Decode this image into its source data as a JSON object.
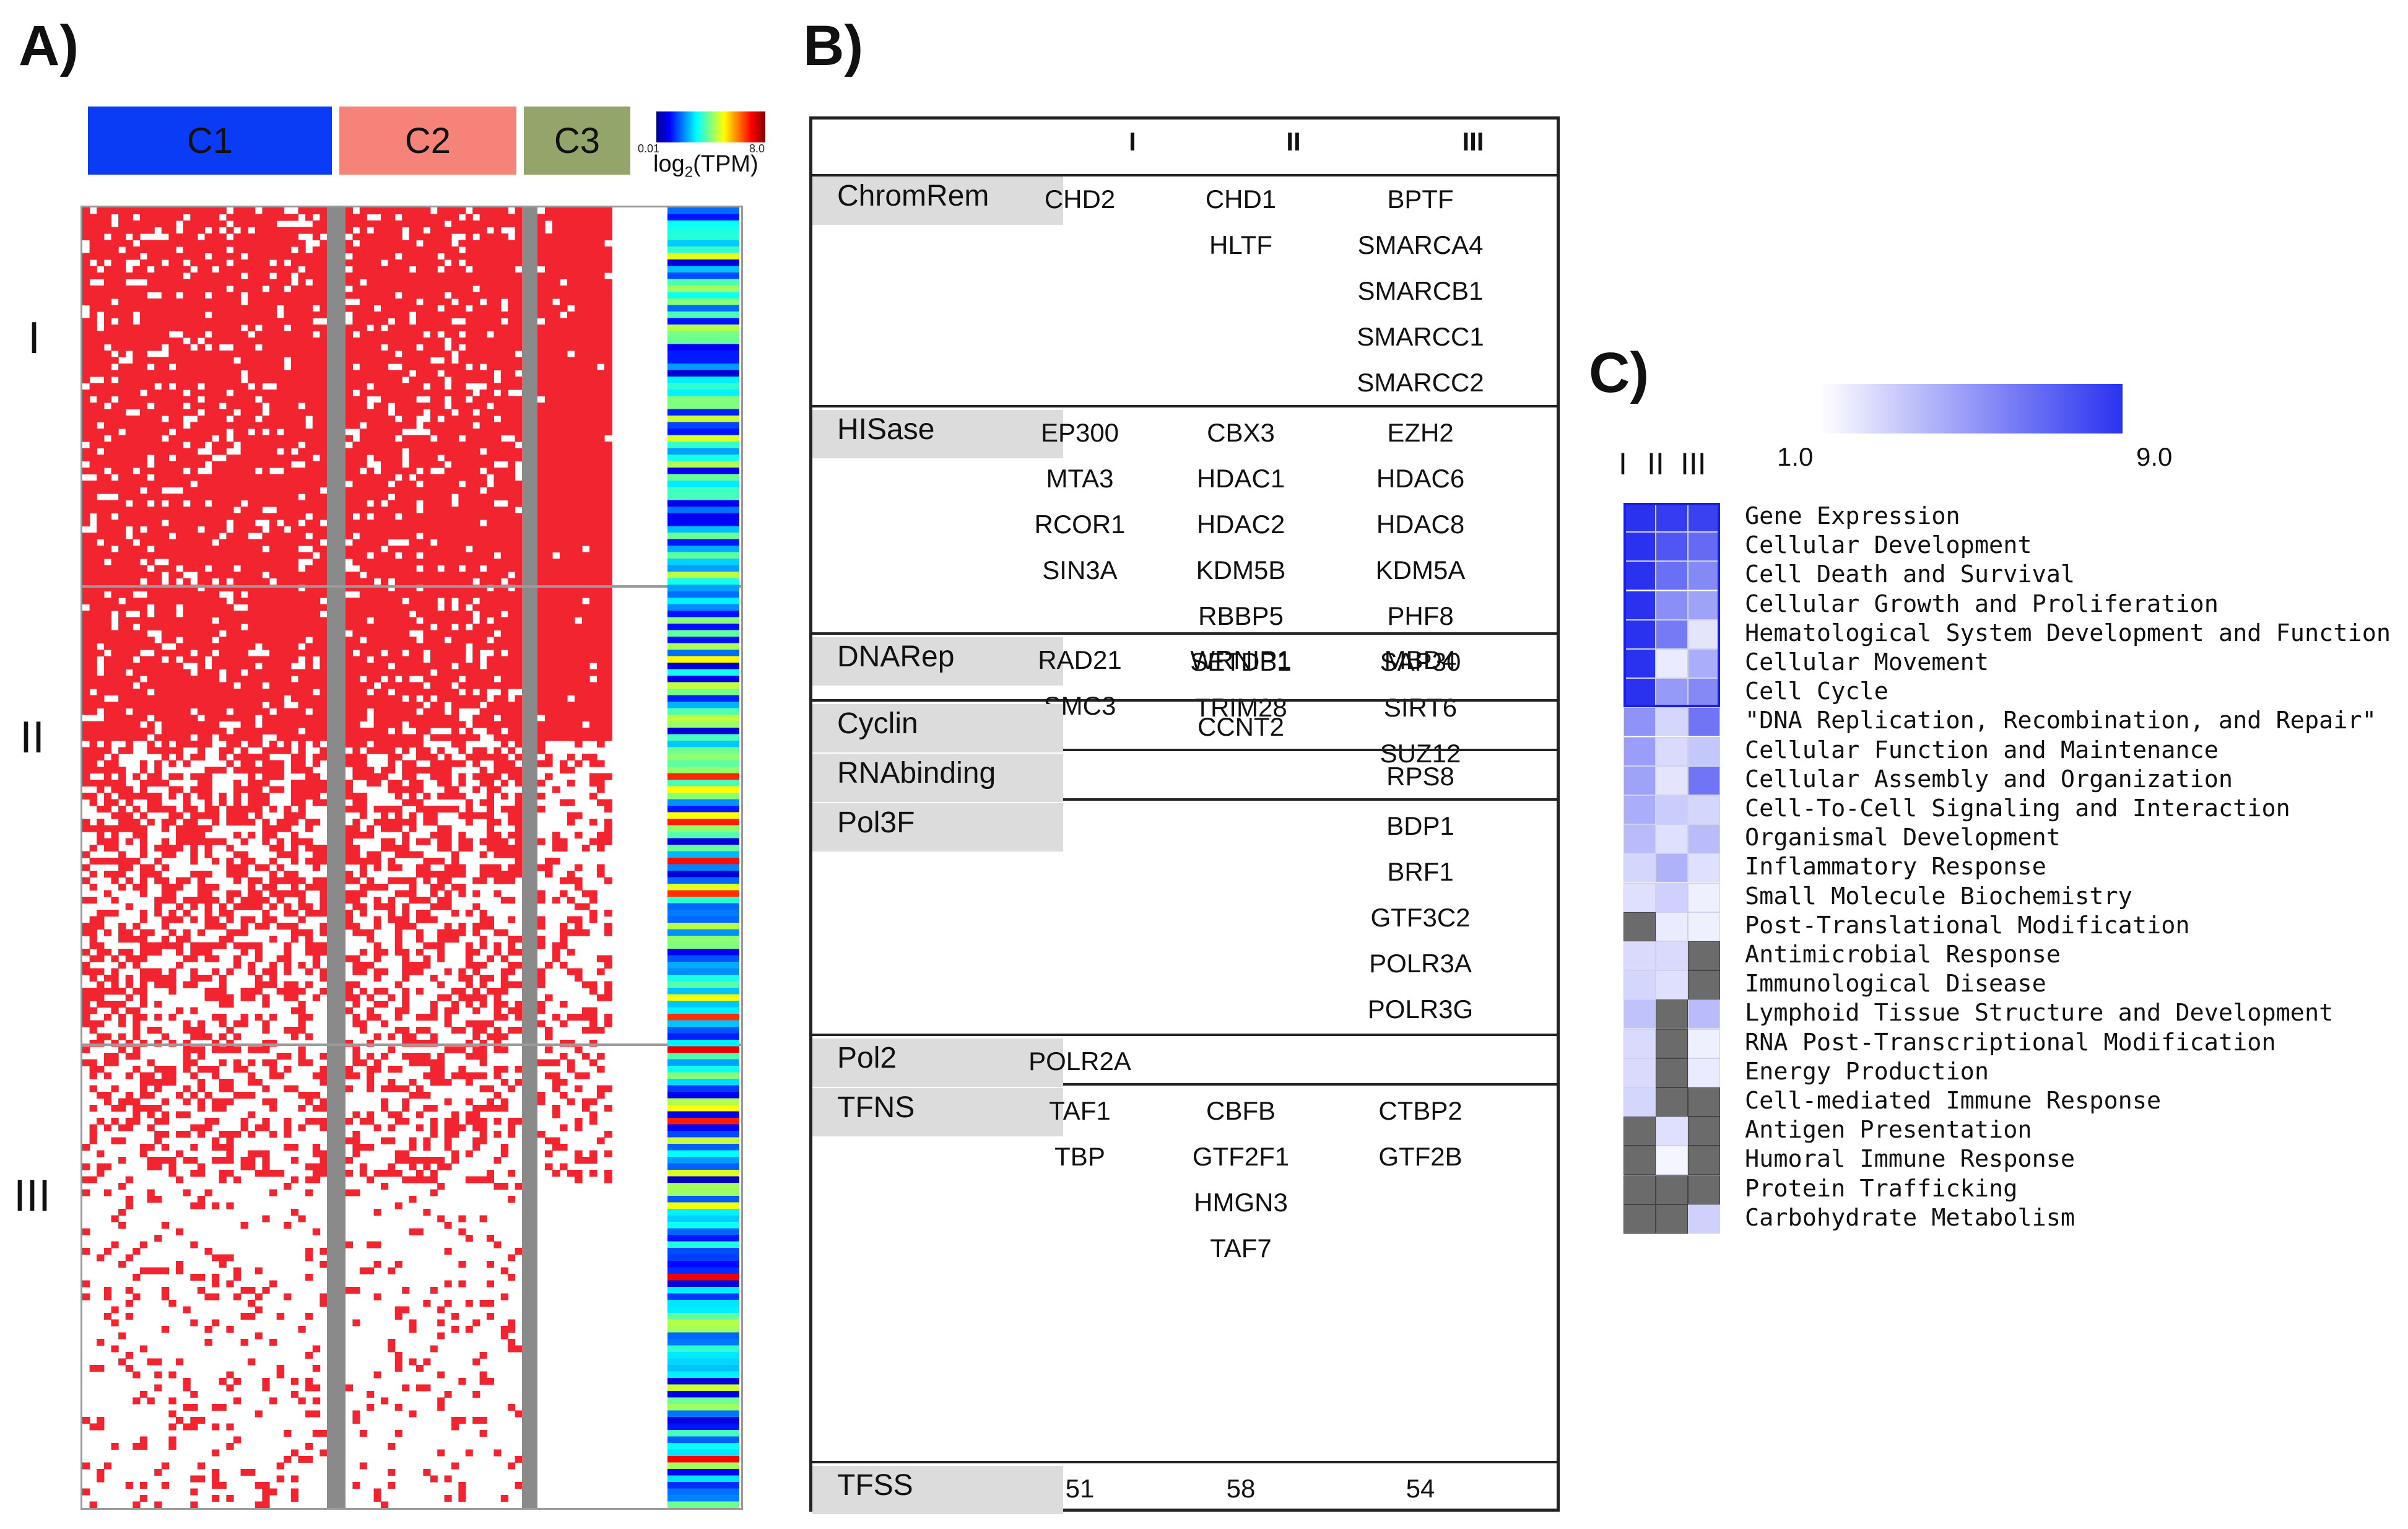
{
  "panels": {
    "a": "A)",
    "b": "B)",
    "c": "C)"
  },
  "panel_a": {
    "clusters": [
      {
        "label": "C1",
        "color": "#0a3cf5"
      },
      {
        "label": "C2",
        "color": "#f5837a"
      },
      {
        "label": "C3",
        "color": "#93a56a"
      }
    ],
    "colorbar": {
      "min": "0.01",
      "max": "8.0",
      "label": "log",
      "label_sub": "2",
      "label_rest": "(TPM)"
    },
    "groups": [
      "I",
      "II",
      "III"
    ],
    "cell_color": "#f2242f",
    "separator_color": "#8a8a8a"
  },
  "panel_b": {
    "columns": [
      "I",
      "II",
      "III"
    ],
    "rows": [
      {
        "category": "ChromRem",
        "I": [
          "CHD2"
        ],
        "II": [
          "CHD1",
          "HLTF"
        ],
        "III": [
          "BPTF",
          "SMARCA4",
          "SMARCB1",
          "SMARCC1",
          "SMARCC2"
        ]
      },
      {
        "category": "HISase",
        "I": [
          "EP300",
          "MTA3",
          "RCOR1",
          "SIN3A"
        ],
        "II": [
          "CBX3",
          "HDAC1",
          "HDAC2",
          "KDM5B",
          "RBBP5",
          "SETDB1",
          "TRIM28"
        ],
        "III": [
          "EZH2",
          "HDAC6",
          "HDAC8",
          "KDM5A",
          "PHF8",
          "SAP30",
          "SIRT6",
          "SUZ12"
        ]
      },
      {
        "category": "DNARep",
        "I": [
          "RAD21",
          "SMC3"
        ],
        "II": [
          "WRNIP1"
        ],
        "III": [
          "MBD4"
        ]
      },
      {
        "category": "Cyclin",
        "I": [],
        "II": [
          "CCNT2"
        ],
        "III": []
      },
      {
        "category": "RNAbinding",
        "I": [],
        "II": [],
        "III": [
          "RPS8"
        ]
      },
      {
        "category": "Pol3F",
        "I": [],
        "II": [],
        "III": [
          "BDP1",
          "BRF1",
          "GTF3C2",
          "POLR3A",
          "POLR3G"
        ]
      },
      {
        "category": "Pol2",
        "I": [
          "POLR2A"
        ],
        "II": [],
        "III": []
      },
      {
        "category": "TFNS",
        "I": [
          "TAF1",
          "TBP"
        ],
        "II": [
          "CBFB",
          "GTF2F1",
          "HMGN3",
          "TAF7"
        ],
        "III": [
          "CTBP2",
          "GTF2B"
        ]
      },
      {
        "category": "TFSS",
        "I": [
          "51"
        ],
        "II": [
          "58"
        ],
        "III": [
          "54"
        ]
      }
    ]
  },
  "panel_c": {
    "scale_min": "1.0",
    "scale_max": "9.0",
    "columns": [
      "I",
      "II",
      "III"
    ],
    "missing_color": "#6b6b6b",
    "categories": [
      {
        "name": "Gene Expression",
        "values": [
          9.0,
          8.6,
          8.4
        ]
      },
      {
        "name": "Cellular Development",
        "values": [
          9.0,
          7.6,
          6.8
        ]
      },
      {
        "name": "Cell Death and Survival",
        "values": [
          9.0,
          6.6,
          5.6
        ]
      },
      {
        "name": "Cellular Growth and Proliferation",
        "values": [
          9.0,
          5.4,
          4.6
        ]
      },
      {
        "name": "Hematological System Development and Function",
        "values": [
          9.0,
          6.2,
          2.0
        ]
      },
      {
        "name": "Cellular Movement",
        "values": [
          9.0,
          1.8,
          4.2
        ]
      },
      {
        "name": "Cell Cycle",
        "values": [
          9.0,
          5.0,
          5.6
        ]
      },
      {
        "name": "\"DNA Replication, Recombination, and Repair\"",
        "values": [
          5.2,
          2.6,
          6.4
        ]
      },
      {
        "name": "Cellular Function and Maintenance",
        "values": [
          4.8,
          2.4,
          3.2
        ]
      },
      {
        "name": "Cellular Assembly and Organization",
        "values": [
          4.6,
          2.0,
          6.4
        ]
      },
      {
        "name": "Cell-To-Cell Signaling and Interaction",
        "values": [
          4.2,
          3.0,
          2.6
        ]
      },
      {
        "name": "Organismal Development",
        "values": [
          3.6,
          2.2,
          3.6
        ]
      },
      {
        "name": "Inflammatory Response",
        "values": [
          2.6,
          4.0,
          2.2
        ]
      },
      {
        "name": "Small Molecule Biochemistry",
        "values": [
          2.2,
          2.8,
          1.6
        ]
      },
      {
        "name": "Post-Translational Modification",
        "values": [
          null,
          1.8,
          1.6
        ]
      },
      {
        "name": "Antimicrobial Response",
        "values": [
          2.4,
          2.4,
          null
        ]
      },
      {
        "name": "Immunological Disease",
        "values": [
          2.6,
          2.2,
          null
        ]
      },
      {
        "name": "Lymphoid Tissue Structure and Development",
        "values": [
          3.4,
          null,
          3.6
        ]
      },
      {
        "name": "RNA Post-Transcriptional Modification",
        "values": [
          2.4,
          null,
          1.6
        ]
      },
      {
        "name": "Energy Production",
        "values": [
          2.4,
          null,
          1.8
        ]
      },
      {
        "name": "Cell-mediated Immune Response",
        "values": [
          2.6,
          null,
          null
        ]
      },
      {
        "name": "Antigen Presentation",
        "values": [
          null,
          2.2,
          null
        ]
      },
      {
        "name": "Humoral Immune Response",
        "values": [
          null,
          1.4,
          null
        ]
      },
      {
        "name": "Protein Trafficking",
        "values": [
          null,
          null,
          null
        ]
      },
      {
        "name": "Carbohydrate Metabolism",
        "values": [
          null,
          null,
          2.8
        ]
      }
    ]
  }
}
